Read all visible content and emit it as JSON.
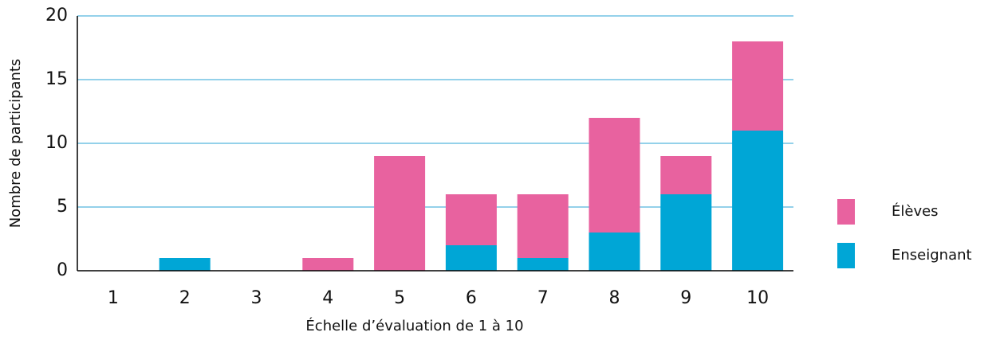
{
  "chart_data": {
    "type": "stacked_bar",
    "xlabel": "Échelle d’évaluation de 1 à 10",
    "ylabel": "Nombre de participants",
    "categories": [
      "1",
      "2",
      "3",
      "4",
      "5",
      "6",
      "7",
      "8",
      "9",
      "10"
    ],
    "series": [
      {
        "name": "Enseignant",
        "color": "#00a6d6",
        "values": [
          0,
          1,
          0,
          0,
          0,
          2,
          1,
          3,
          6,
          11
        ]
      },
      {
        "name": "Élèves",
        "color": "#e8629f",
        "values": [
          0,
          0,
          0,
          1,
          9,
          4,
          5,
          9,
          3,
          7
        ]
      }
    ],
    "ylim": [
      0,
      20
    ],
    "yticks": [
      0,
      5,
      10,
      15,
      20
    ],
    "grid": true,
    "legend": "right"
  }
}
